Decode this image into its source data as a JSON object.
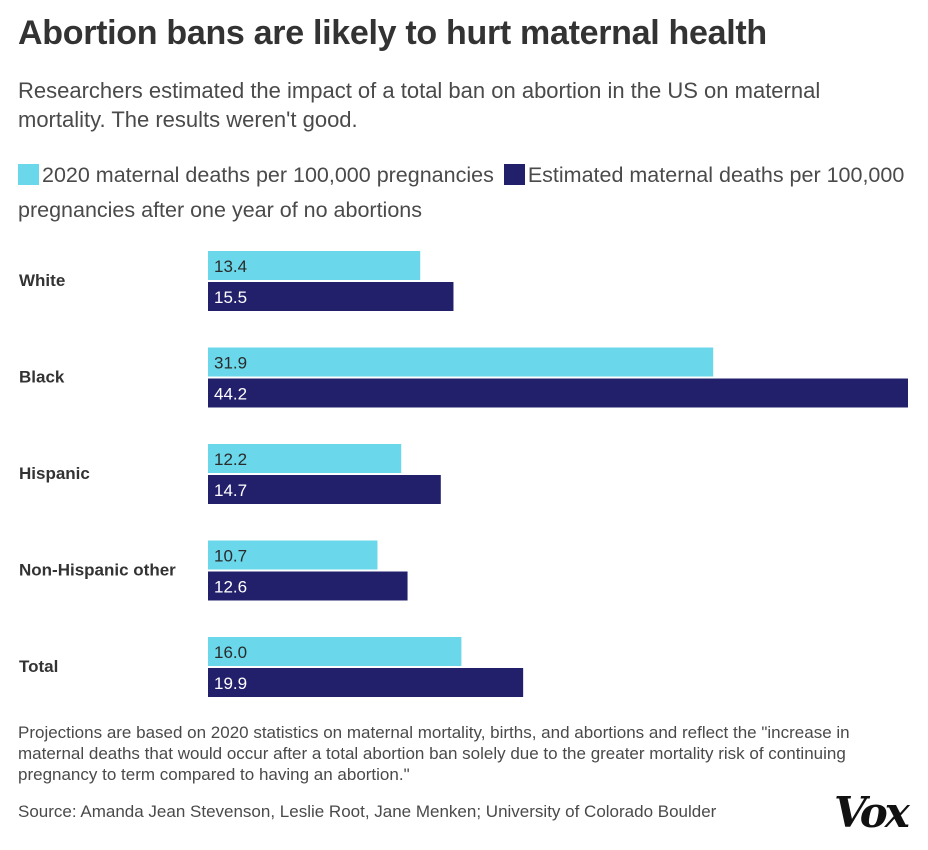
{
  "title": "Abortion bans are likely to hurt maternal health",
  "subtitle": "Researchers estimated the impact of a total ban on abortion in the US on maternal mortality. The results weren't good.",
  "chart_data": {
    "type": "bar",
    "orientation": "horizontal",
    "categories": [
      "White",
      "Black",
      "Hispanic",
      "Non-Hispanic other",
      "Total"
    ],
    "series": [
      {
        "name": "2020 maternal deaths per 100,000 pregnancies",
        "color": "#6bd7ea",
        "values": [
          13.4,
          31.9,
          12.2,
          10.7,
          16.0
        ],
        "labels": [
          "13.4",
          "31.9",
          "12.2",
          "10.7",
          "16.0"
        ]
      },
      {
        "name": "Estimated maternal deaths per 100,000 pregnancies after one year of no abortions",
        "color": "#23206b",
        "values": [
          15.5,
          44.2,
          14.7,
          12.6,
          19.9
        ],
        "labels": [
          "15.5",
          "44.2",
          "14.7",
          "12.6",
          "19.9"
        ]
      }
    ],
    "xlim": [
      0,
      44.2
    ],
    "grid": false,
    "legend_placement": "top"
  },
  "note": "Projections are based on 2020 statistics on maternal mortality, births, and abortions and reflect the \"increase in maternal deaths that would occur after a total abortion ban solely due to the greater mortality risk of continuing pregnancy to term compared to having an abortion.\"",
  "source": "Source: Amanda Jean Stevenson, Leslie Root, Jane Menken; University of Colorado Boulder",
  "logo": "Vox"
}
